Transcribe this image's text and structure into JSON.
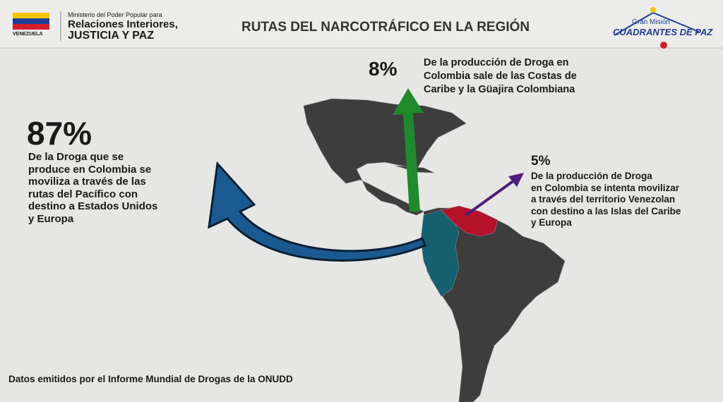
{
  "header": {
    "flag_caption": "VENEZUELA",
    "ministry": [
      "Ministerio del Poder Popular para",
      "Relaciones Interiores,",
      "JUSTICIA Y PAZ"
    ],
    "title": "RUTAS DEL NARCOTRÁFICO EN LA REGIÓN",
    "mission": [
      "Gran Misión",
      "CUADRANTES DE PAZ"
    ]
  },
  "stats": [
    {
      "percent": "87%",
      "lines": [
        "De la Droga que se",
        "produce en Colombia se",
        "moviliza a través de las",
        "rutas del Pacífico con",
        "destino a Estados Unidos",
        "y Europa"
      ]
    },
    {
      "percent": "8%",
      "lines": [
        "De la producción de Droga en",
        "Colombia sale de las Costas de",
        "Caribe y la Güajira Colombiana"
      ]
    },
    {
      "percent": "5%",
      "lines": [
        "De la producción de Droga",
        "en Colombia se intenta movilizar",
        "a través del territorio Venezolan",
        "con destino a las Islas del Caribe",
        "y Europa"
      ]
    }
  ],
  "footer": "Datos emitidos por el Informe Mundial de Drogas de la ONUDD"
}
